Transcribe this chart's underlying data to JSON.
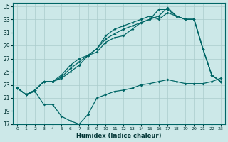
{
  "xlabel": "Humidex (Indice chaleur)",
  "bg_color": "#cce8e8",
  "grid_color": "#aacccc",
  "line_color": "#006666",
  "xlim": [
    -0.5,
    23.5
  ],
  "ylim": [
    17,
    35.5
  ],
  "yticks": [
    17,
    19,
    21,
    23,
    25,
    27,
    29,
    31,
    33,
    35
  ],
  "xticks": [
    0,
    1,
    2,
    3,
    4,
    5,
    6,
    7,
    8,
    9,
    10,
    11,
    12,
    13,
    14,
    15,
    16,
    17,
    18,
    19,
    20,
    21,
    22,
    23
  ],
  "line1_x": [
    0,
    1,
    2,
    3,
    4,
    5,
    6,
    7,
    8,
    9,
    10,
    11,
    12,
    13,
    14,
    15,
    16,
    17,
    18,
    19,
    20,
    21,
    22,
    23
  ],
  "line1_y": [
    22.5,
    21.5,
    22.0,
    20.0,
    20.0,
    18.2,
    17.5,
    17.0,
    18.5,
    21.0,
    21.5,
    22.0,
    22.2,
    22.5,
    23.0,
    23.2,
    23.5,
    23.8,
    23.5,
    23.2,
    23.2,
    23.2,
    23.5,
    24.0
  ],
  "line2_x": [
    0,
    1,
    2,
    3,
    4,
    5,
    6,
    7,
    8,
    9,
    10,
    11,
    12,
    13,
    14,
    15,
    16,
    17,
    18,
    19,
    20,
    21,
    22,
    23
  ],
  "line2_y": [
    22.5,
    21.5,
    22.2,
    23.5,
    23.5,
    24.0,
    25.0,
    26.0,
    27.5,
    28.0,
    29.5,
    30.2,
    30.5,
    31.5,
    32.5,
    33.0,
    33.5,
    34.8,
    33.5,
    33.0,
    33.0,
    28.5,
    24.5,
    23.5
  ],
  "line3_x": [
    0,
    1,
    2,
    3,
    4,
    5,
    6,
    7,
    8,
    9,
    10,
    11,
    12,
    13,
    14,
    15,
    16,
    17,
    18,
    19,
    20,
    21,
    22,
    23
  ],
  "line3_y": [
    22.5,
    21.5,
    22.2,
    23.5,
    23.5,
    24.2,
    25.5,
    26.5,
    27.5,
    28.5,
    30.0,
    30.8,
    31.5,
    32.0,
    32.5,
    33.0,
    34.5,
    34.5,
    33.5,
    33.0,
    33.0,
    28.5,
    24.5,
    23.5
  ],
  "line4_x": [
    0,
    1,
    2,
    3,
    4,
    5,
    6,
    7,
    8,
    9,
    10,
    11,
    12,
    13,
    14,
    15,
    16,
    17,
    18,
    19,
    20,
    21,
    22,
    23
  ],
  "line4_y": [
    22.5,
    21.5,
    22.2,
    23.5,
    23.5,
    24.5,
    26.0,
    27.0,
    27.5,
    28.5,
    30.5,
    31.5,
    32.0,
    32.5,
    33.0,
    33.5,
    33.0,
    34.0,
    33.5,
    33.0,
    33.0,
    28.5,
    24.5,
    23.5
  ]
}
